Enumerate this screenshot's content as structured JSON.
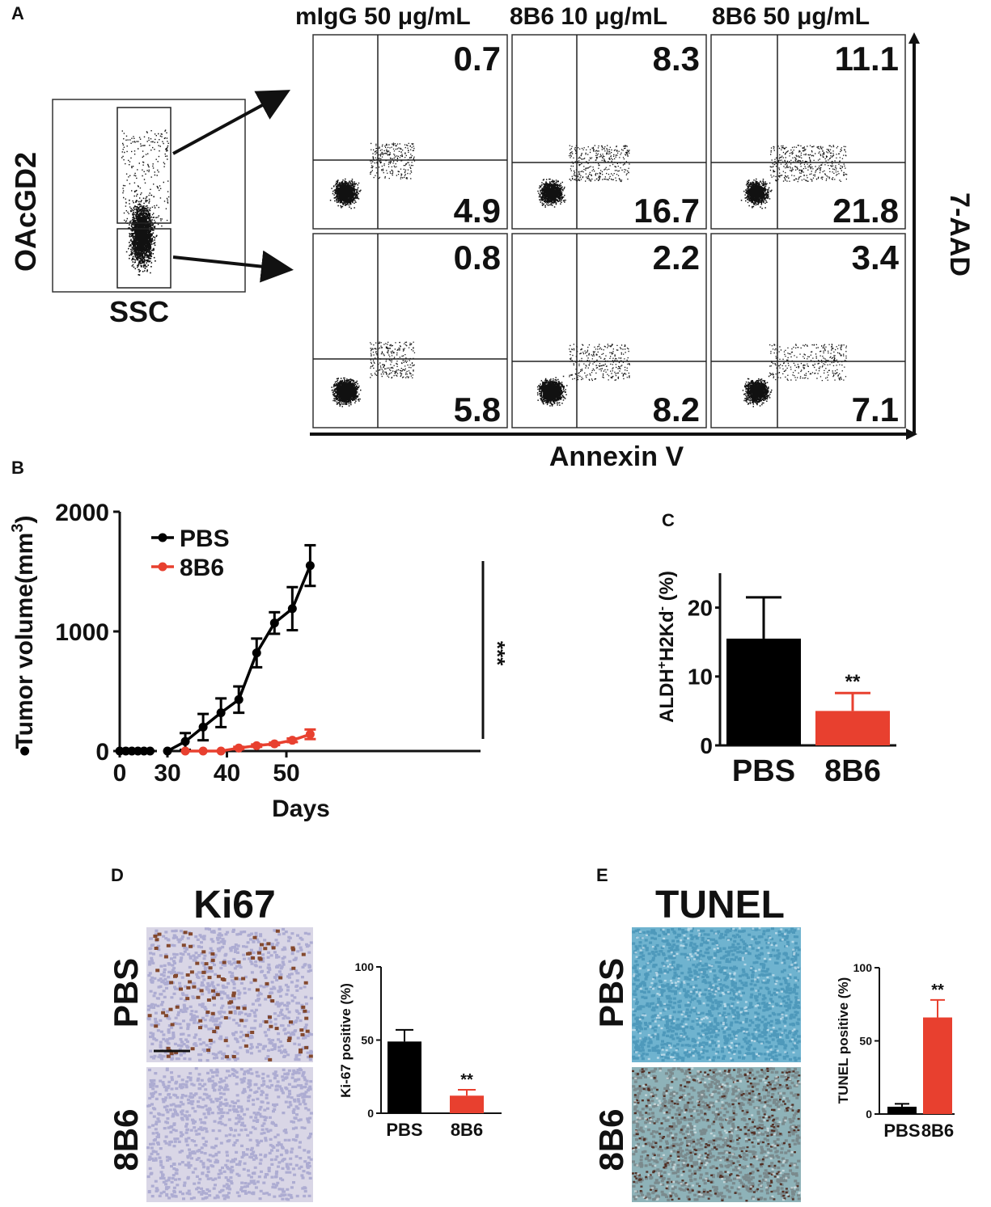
{
  "colors": {
    "pbs": "#000000",
    "treated": "#e8402f",
    "ink": "#111111",
    "ihc_bg": "#d9d6e6",
    "tunel_bg": "#6fb3cf"
  },
  "panel_a": {
    "letter": "A",
    "gate_y_label": "OAcGD2",
    "gate_x_label": "SSC",
    "columns": [
      "mIgG 50 μg/mL",
      "8B6 10 μg/mL",
      "8B6 50 μg/mL"
    ],
    "y_axis_label": "7-AAD",
    "x_axis_label": "Annexin V",
    "quadrants": [
      [
        {
          "upper": "0.7",
          "lower": "4.9"
        },
        {
          "upper": "8.3",
          "lower": "16.7"
        },
        {
          "upper": "11.1",
          "lower": "21.8"
        }
      ],
      [
        {
          "upper": "0.8",
          "lower": "5.8"
        },
        {
          "upper": "2.2",
          "lower": "8.2"
        },
        {
          "upper": "3.4",
          "lower": "7.1"
        }
      ]
    ]
  },
  "panel_b": {
    "letter": "B",
    "significance": "***"
  },
  "panel_c": {
    "letter": "C"
  },
  "panel_d": {
    "letter": "D",
    "title": "Ki67",
    "row_labels": [
      "PBS",
      "8B6"
    ]
  },
  "panel_e": {
    "letter": "E",
    "title": "TUNEL",
    "row_labels": [
      "PBS",
      "8B6"
    ]
  },
  "chart_data": [
    {
      "id": "B",
      "type": "line",
      "title": "",
      "xlabel": "Days",
      "ylabel": "Tumor volume(mm3)",
      "ylim": [
        0,
        2000
      ],
      "yticks": [
        0,
        1000,
        2000
      ],
      "xticks": [
        0,
        30,
        40,
        50
      ],
      "x_axis_break": [
        5,
        30
      ],
      "series": [
        {
          "name": "PBS",
          "color": "#000000",
          "x": [
            0,
            1,
            2,
            3,
            4,
            5,
            6,
            30,
            33,
            36,
            39,
            42,
            45,
            48,
            51,
            54
          ],
          "y": [
            0,
            0,
            0,
            0,
            0,
            0,
            0,
            0,
            80,
            200,
            320,
            430,
            820,
            1070,
            1190,
            1550
          ],
          "err": [
            0,
            0,
            0,
            0,
            0,
            0,
            0,
            0,
            70,
            110,
            120,
            110,
            120,
            90,
            180,
            170
          ]
        },
        {
          "name": "8B6",
          "color": "#e8402f",
          "x": [
            33,
            36,
            39,
            42,
            45,
            48,
            51,
            54
          ],
          "y": [
            0,
            0,
            0,
            25,
            45,
            60,
            90,
            140
          ],
          "err": [
            0,
            0,
            0,
            10,
            10,
            10,
            15,
            40
          ]
        }
      ],
      "legend": "top-left",
      "significance": "***"
    },
    {
      "id": "C",
      "type": "bar",
      "ylabel": "ALDH+H2Kd- (%)",
      "categories": [
        "PBS",
        "8B6"
      ],
      "values": [
        15.5,
        5
      ],
      "errors": [
        6,
        2.6
      ],
      "ylim": [
        0,
        25
      ],
      "yticks": [
        0,
        10,
        20
      ],
      "annotations": [
        "",
        "**"
      ]
    },
    {
      "id": "D",
      "type": "bar",
      "ylabel": "Ki-67 positive (%)",
      "categories": [
        "PBS",
        "8B6"
      ],
      "values": [
        49,
        12
      ],
      "errors": [
        8,
        4
      ],
      "ylim": [
        0,
        100
      ],
      "yticks": [
        0,
        50,
        100
      ],
      "annotations": [
        "",
        "**"
      ]
    },
    {
      "id": "E",
      "type": "bar",
      "ylabel": "TUNEL positive (%)",
      "categories": [
        "PBS",
        "8B6"
      ],
      "values": [
        5,
        66
      ],
      "errors": [
        2,
        12
      ],
      "ylim": [
        0,
        100
      ],
      "yticks": [
        0,
        50,
        100
      ],
      "annotations": [
        "",
        "**"
      ]
    }
  ]
}
